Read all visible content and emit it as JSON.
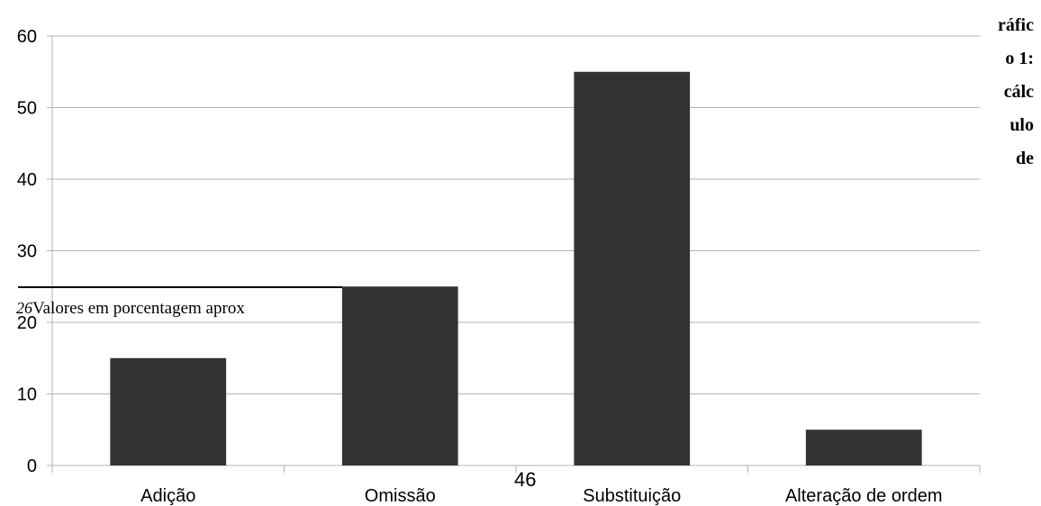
{
  "chart_data": {
    "type": "bar",
    "categories": [
      "Adição",
      "Omissão",
      "Substituição",
      "Alteração de ordem"
    ],
    "values": [
      15,
      25,
      55,
      5
    ],
    "ylim": [
      0,
      60
    ],
    "yticks": [
      0,
      10,
      20,
      30,
      40,
      50,
      60
    ],
    "grid": true,
    "bar_color": "#333333",
    "grid_color": "#b3b3b3",
    "title_lines": [
      "ráfic",
      "o 1:",
      "cálc",
      "ulo",
      "de"
    ]
  },
  "footnote": {
    "number": "26",
    "text": "Valores em porcentagem aprox"
  },
  "page_number": "46"
}
